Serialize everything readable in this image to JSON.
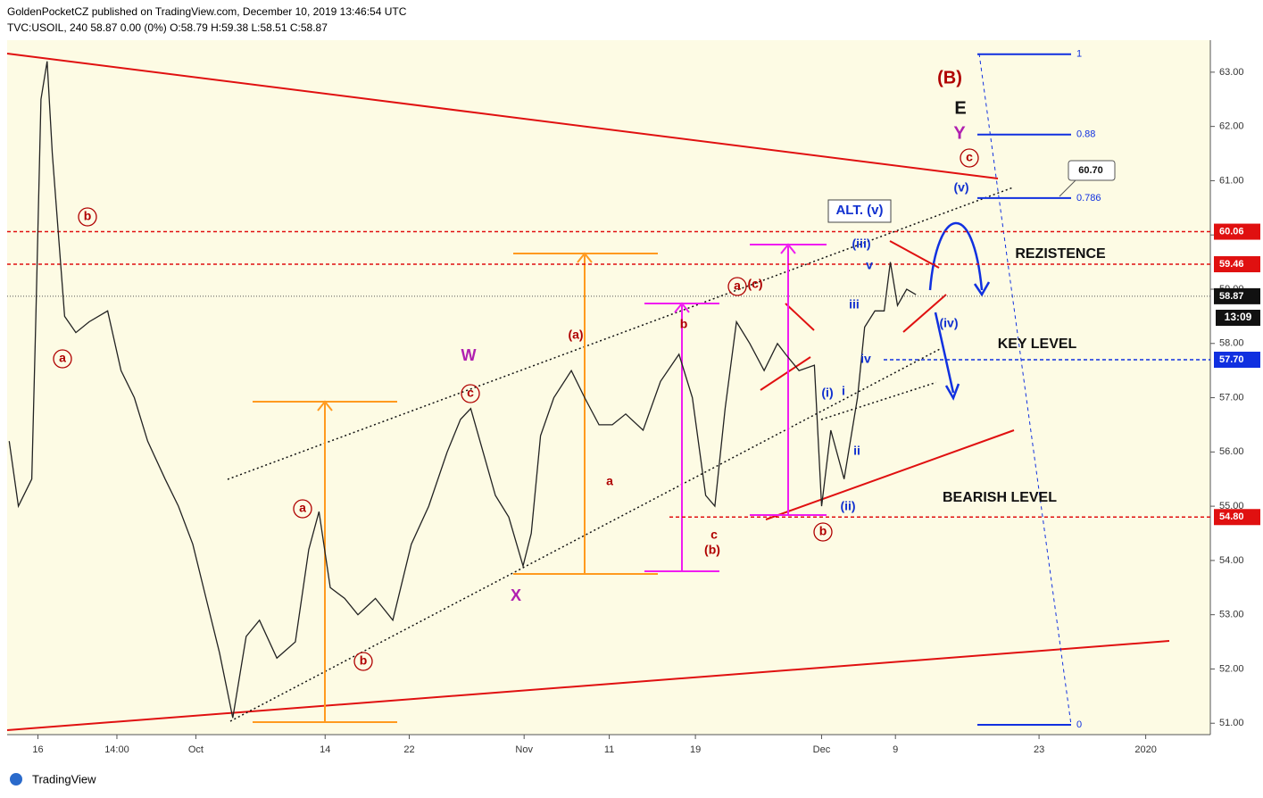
{
  "chart_data": {
    "type": "line",
    "header": "GoldenPocketCZ published on TradingView.com, December 10, 2019 13:46:54 UTC",
    "symbol_line": "TVC:USOIL, 240  58.87 0.00 (0%) O:58.79 H:59.38 L:58.51 C:58.87",
    "footer": "TradingView",
    "x": [
      11.8,
      12.7,
      14.0,
      14.4,
      14.9,
      15.5,
      16.0,
      16.6,
      17.2,
      18.3,
      19.6,
      21.4,
      22.7,
      24.0,
      25.3,
      27.0,
      28.3,
      29.7,
      31.0,
      32.3,
      33.6,
      34.9,
      36.2,
      37.9,
      39.7,
      41.0,
      42.0,
      43.1,
      44.5,
      45.8,
      47.5,
      49.2,
      51.0,
      52.7,
      54.5,
      55.8,
      56.8,
      58.0,
      59.2,
      60.5,
      61.9,
      62.7,
      63.6,
      64.9,
      66.6,
      67.9,
      69.3,
      70.6,
      71.9,
      73.6,
      75.3,
      77.1,
      78.4,
      79.7,
      80.6,
      81.6,
      82.7,
      84.0,
      85.4,
      86.7,
      87.5,
      88.8,
      90.3,
      91.0,
      91.9,
      93.2,
      94.5,
      95.2,
      96.2,
      97.1,
      97.7,
      98.4,
      99.3,
      100.2
    ],
    "series": [
      {
        "name": "USOIL",
        "color": "#222222",
        "values": [
          56.2,
          55.0,
          55.5,
          58.5,
          62.5,
          63.2,
          61.5,
          60.0,
          58.5,
          58.2,
          58.4,
          58.6,
          57.5,
          57.0,
          56.2,
          55.5,
          55.0,
          54.3,
          53.3,
          52.3,
          51.1,
          52.6,
          52.9,
          52.2,
          52.5,
          54.2,
          54.9,
          53.5,
          53.3,
          53.0,
          53.3,
          52.9,
          54.3,
          55.0,
          56.0,
          56.6,
          56.8,
          56.0,
          55.2,
          54.8,
          53.9,
          54.5,
          56.3,
          57.0,
          57.5,
          57.0,
          56.5,
          56.5,
          56.7,
          56.4,
          57.3,
          57.8,
          57.0,
          55.2,
          55.0,
          56.8,
          58.4,
          58.0,
          57.5,
          58.0,
          57.8,
          57.5,
          57.6,
          55.0,
          56.4,
          55.5,
          57.0,
          58.3,
          58.6,
          58.6,
          59.5,
          58.7,
          59.0,
          58.9
        ]
      }
    ],
    "xlim": [
      11.6,
      128.9
    ],
    "xticks": [
      {
        "value": 14.6,
        "label": "16"
      },
      {
        "value": 22.3,
        "label": "14:00"
      },
      {
        "value": 30,
        "label": "Oct"
      },
      {
        "value": 42.6,
        "label": "14"
      },
      {
        "value": 50.8,
        "label": "22"
      },
      {
        "value": 62,
        "label": "Nov"
      },
      {
        "value": 70.3,
        "label": "11"
      },
      {
        "value": 78.7,
        "label": "19"
      },
      {
        "value": 91,
        "label": "Dec"
      },
      {
        "value": 98.2,
        "label": "9"
      },
      {
        "value": 112.2,
        "label": "23"
      },
      {
        "value": 122.6,
        "label": "2020"
      }
    ],
    "ylim": [
      50.79,
      63.59
    ],
    "yticks": [
      {
        "value": 51,
        "label": "51.00"
      },
      {
        "value": 52,
        "label": "52.00"
      },
      {
        "value": 53,
        "label": "53.00"
      },
      {
        "value": 54,
        "label": "54.00"
      },
      {
        "value": 55,
        "label": "55.00"
      },
      {
        "value": 56,
        "label": "56.00"
      },
      {
        "value": 57,
        "label": "57.00"
      },
      {
        "value": 58,
        "label": "58.00"
      },
      {
        "value": 59,
        "label": "59.00"
      },
      {
        "value": 60,
        "label": "60.00"
      },
      {
        "value": 61,
        "label": "61.00"
      },
      {
        "value": 62,
        "label": "62.00"
      },
      {
        "value": 63,
        "label": "63.00"
      }
    ],
    "levels": [
      {
        "value": 60.06,
        "label": "60.06",
        "color": "#e01010"
      },
      {
        "value": 59.46,
        "label": "59.46",
        "color": "#e01010"
      },
      {
        "value": 57.7,
        "label": "57.70",
        "color": "#1030e0"
      },
      {
        "value": 54.8,
        "label": "54.80",
        "color": "#e01010"
      }
    ],
    "last": {
      "value": 58.87,
      "label": "58.87",
      "countdown": "13:09"
    },
    "fib": {
      "ratios": [
        1,
        0.88,
        0.786,
        0
      ],
      "prices": [
        63.33,
        61.85,
        60.68,
        50.97
      ],
      "color": "#1030e0"
    },
    "annotations": [
      "(B)",
      "E",
      "Y",
      "c",
      "(v)",
      "ALT. (v)",
      "(iii)",
      "v",
      "iii",
      "(iv)",
      "iv",
      "(i)",
      "i",
      "ii",
      "(ii)",
      "b",
      "a",
      "(c)",
      "b",
      "(b)",
      "c",
      "(a)",
      "a",
      "W",
      "c",
      "X",
      "a",
      "b",
      "b",
      "a",
      "REZISTENCE",
      "KEY LEVEL",
      "BEARISH LEVEL",
      "60.70"
    ]
  }
}
